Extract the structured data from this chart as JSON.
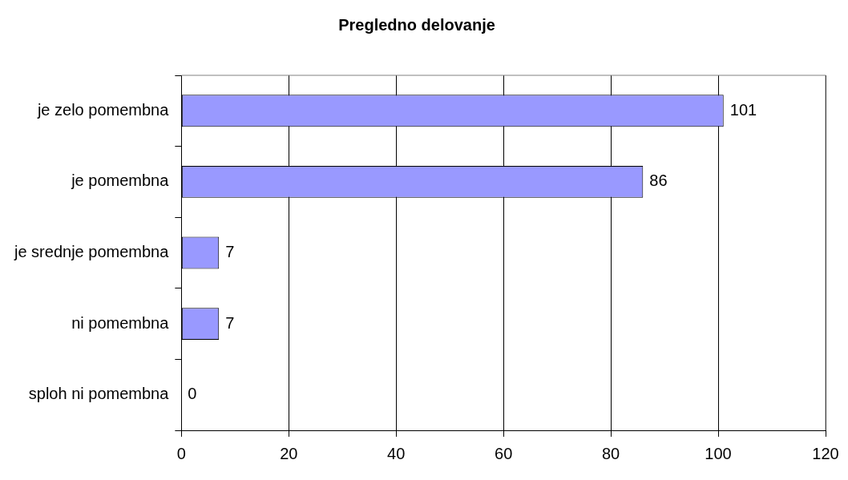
{
  "chart_data": {
    "type": "bar",
    "orientation": "horizontal",
    "title": "Pregledno delovanje",
    "categories": [
      "je zelo pomembna",
      "je pomembna",
      "je srednje pomembna",
      "ni pomembna",
      "sploh ni pomembna"
    ],
    "values": [
      101,
      86,
      7,
      7,
      0
    ],
    "color": "#9999ff",
    "xlim": [
      0,
      120
    ],
    "xticks": [
      0,
      20,
      40,
      60,
      80,
      100,
      120
    ],
    "grid": "x",
    "data_labels": true
  }
}
